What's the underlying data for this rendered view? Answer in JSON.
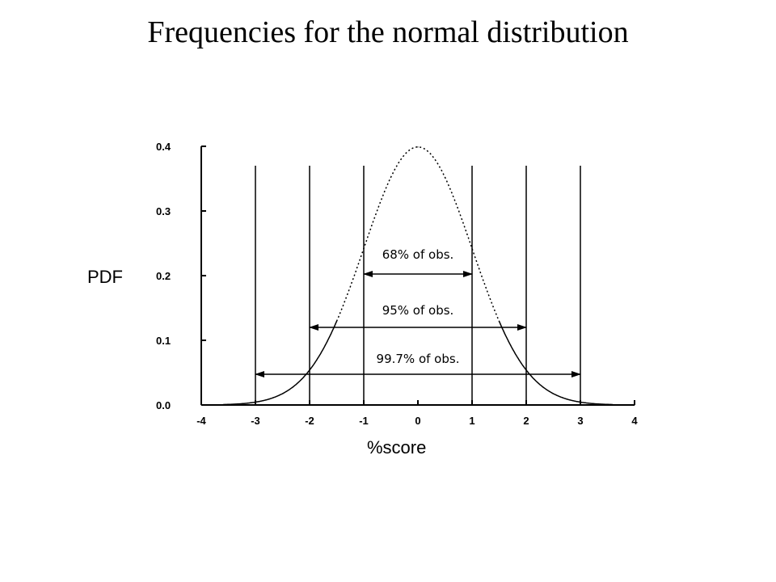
{
  "page": {
    "title": "Frequencies for the normal distribution"
  },
  "chart_data": {
    "type": "line",
    "title": "Frequencies for the normal distribution",
    "xlabel": "%score",
    "ylabel": "PDF",
    "xlim": [
      -4,
      4
    ],
    "ylim": [
      0,
      0.4
    ],
    "x_ticks": [
      "-4",
      "-3",
      "-2",
      "-1",
      "0",
      "1",
      "2",
      "3",
      "4"
    ],
    "y_ticks": [
      "0.0",
      "0.1",
      "0.2",
      "0.3",
      "0.4"
    ],
    "grid": false,
    "series": [
      {
        "x": [
          -4,
          -3.5,
          -3,
          -2.5,
          -2,
          -1.5,
          -1,
          -0.5,
          0,
          0.5,
          1,
          1.5,
          2,
          2.5,
          3,
          3.5,
          4
        ],
        "values": [
          0.0001,
          0.0009,
          0.0044,
          0.0175,
          0.054,
          0.1295,
          0.242,
          0.3521,
          0.3989,
          0.3521,
          0.242,
          0.1295,
          0.054,
          0.0175,
          0.0044,
          0.0009,
          0.0001
        ]
      }
    ],
    "reference_lines_x": [
      -3,
      -2,
      -1,
      1,
      2,
      3
    ],
    "annotations": [
      {
        "text": "68% of obs.",
        "from": -1,
        "to": 1
      },
      {
        "text": "95% of obs.",
        "from": -2,
        "to": 2
      },
      {
        "text": "99.7% of obs.",
        "from": -3,
        "to": 3
      }
    ]
  }
}
